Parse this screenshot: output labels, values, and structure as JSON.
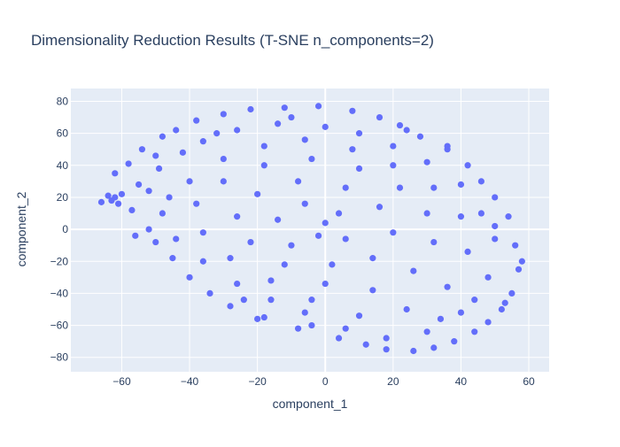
{
  "chart_data": {
    "type": "scatter",
    "title": "Dimensionality Reduction Results (T-SNE n_components=2)",
    "xlabel": "component_1",
    "ylabel": "component_2",
    "xlim": [
      -75,
      66
    ],
    "ylim": [
      -89,
      88
    ],
    "x_ticks": [
      -60,
      -40,
      -20,
      0,
      20,
      40,
      60
    ],
    "y_ticks": [
      -80,
      -60,
      -40,
      -20,
      0,
      20,
      40,
      60,
      80
    ],
    "x_tick_labels": [
      "−60",
      "−40",
      "−20",
      "0",
      "20",
      "40",
      "60"
    ],
    "y_tick_labels": [
      "−80",
      "−60",
      "−40",
      "−20",
      "0",
      "20",
      "40",
      "60",
      "80"
    ],
    "grid": true,
    "legend": "none",
    "colors": {
      "marker": "#636efa",
      "plot_background": "#e5ecf6",
      "grid": "#ffffff",
      "text": "#2a3f5f"
    },
    "series": [
      {
        "points": [
          [
            -66,
            17
          ],
          [
            -64,
            21
          ],
          [
            -63,
            18
          ],
          [
            -62,
            20
          ],
          [
            -61,
            16
          ],
          [
            -60,
            22
          ],
          [
            -62,
            35
          ],
          [
            -58,
            41
          ],
          [
            -55,
            28
          ],
          [
            -54,
            50
          ],
          [
            -52,
            0
          ],
          [
            -50,
            -8
          ],
          [
            -48,
            58
          ],
          [
            -45,
            -18
          ],
          [
            -44,
            62
          ],
          [
            -40,
            -30
          ],
          [
            -38,
            68
          ],
          [
            -34,
            -40
          ],
          [
            -30,
            72
          ],
          [
            -28,
            -48
          ],
          [
            -22,
            75
          ],
          [
            -18,
            -55
          ],
          [
            -12,
            76
          ],
          [
            -8,
            -62
          ],
          [
            -2,
            77
          ],
          [
            4,
            -68
          ],
          [
            8,
            74
          ],
          [
            12,
            -72
          ],
          [
            16,
            70
          ],
          [
            18,
            -75
          ],
          [
            22,
            65
          ],
          [
            26,
            -76
          ],
          [
            28,
            58
          ],
          [
            32,
            -74
          ],
          [
            36,
            50
          ],
          [
            38,
            -70
          ],
          [
            42,
            40
          ],
          [
            44,
            -64
          ],
          [
            46,
            30
          ],
          [
            48,
            -58
          ],
          [
            50,
            20
          ],
          [
            52,
            -50
          ],
          [
            54,
            8
          ],
          [
            55,
            -40
          ],
          [
            56,
            -10
          ],
          [
            57,
            -25
          ],
          [
            58,
            -20
          ],
          [
            53,
            -46
          ],
          [
            -57,
            12
          ],
          [
            -49,
            38
          ],
          [
            -42,
            48
          ],
          [
            -36,
            55
          ],
          [
            -26,
            62
          ],
          [
            -14,
            66
          ],
          [
            0,
            64
          ],
          [
            10,
            60
          ],
          [
            20,
            52
          ],
          [
            30,
            42
          ],
          [
            40,
            28
          ],
          [
            46,
            10
          ],
          [
            50,
            -6
          ],
          [
            48,
            -30
          ],
          [
            40,
            -52
          ],
          [
            30,
            -64
          ],
          [
            18,
            -68
          ],
          [
            6,
            -62
          ],
          [
            -6,
            -52
          ],
          [
            -16,
            -44
          ],
          [
            -26,
            -34
          ],
          [
            -36,
            -20
          ],
          [
            -44,
            -6
          ],
          [
            -48,
            10
          ],
          [
            -40,
            30
          ],
          [
            -30,
            44
          ],
          [
            -18,
            52
          ],
          [
            -6,
            56
          ],
          [
            8,
            50
          ],
          [
            20,
            40
          ],
          [
            32,
            26
          ],
          [
            40,
            8
          ],
          [
            42,
            -14
          ],
          [
            36,
            -36
          ],
          [
            24,
            -50
          ],
          [
            10,
            -54
          ],
          [
            -4,
            -44
          ],
          [
            -16,
            -32
          ],
          [
            -28,
            -18
          ],
          [
            -36,
            -2
          ],
          [
            -38,
            16
          ],
          [
            -30,
            30
          ],
          [
            -18,
            40
          ],
          [
            -4,
            44
          ],
          [
            10,
            38
          ],
          [
            22,
            26
          ],
          [
            30,
            10
          ],
          [
            32,
            -8
          ],
          [
            26,
            -26
          ],
          [
            14,
            -38
          ],
          [
            0,
            -34
          ],
          [
            -12,
            -22
          ],
          [
            -22,
            -8
          ],
          [
            -26,
            8
          ],
          [
            -20,
            22
          ],
          [
            -8,
            30
          ],
          [
            6,
            26
          ],
          [
            16,
            14
          ],
          [
            20,
            -2
          ],
          [
            14,
            -18
          ],
          [
            2,
            -22
          ],
          [
            -10,
            -10
          ],
          [
            -14,
            6
          ],
          [
            -6,
            16
          ],
          [
            4,
            10
          ],
          [
            6,
            -6
          ],
          [
            -2,
            -4
          ],
          [
            0,
            4
          ],
          [
            -52,
            24
          ],
          [
            -46,
            20
          ],
          [
            -56,
            -4
          ],
          [
            -24,
            -44
          ],
          [
            -20,
            -56
          ],
          [
            -4,
            -60
          ],
          [
            34,
            -56
          ],
          [
            44,
            -44
          ],
          [
            50,
            2
          ],
          [
            36,
            52
          ],
          [
            24,
            62
          ],
          [
            -10,
            70
          ],
          [
            -32,
            60
          ],
          [
            -50,
            46
          ]
        ]
      }
    ]
  }
}
